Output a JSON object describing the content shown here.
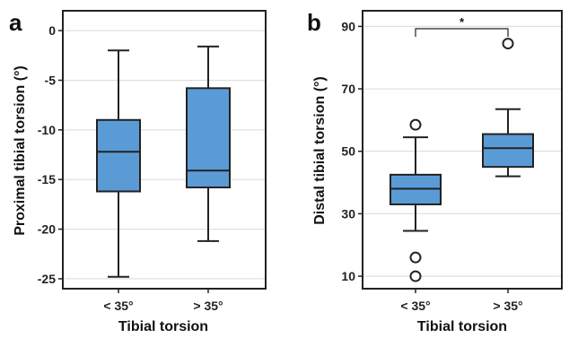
{
  "chart_data": [
    {
      "type": "box",
      "panel_label": "a",
      "xlabel": "Tibial torsion",
      "ylabel": "Proximal tibial torsion (°)",
      "categories": [
        "< 35°",
        "> 35°"
      ],
      "ylim": [
        -26,
        2
      ],
      "yticks": [
        0,
        -5,
        -10,
        -15,
        -20,
        -25
      ],
      "ytick_labels": [
        "0",
        "-5",
        "-10",
        "-15",
        "-20",
        "-25"
      ],
      "grid": true,
      "box_color": "#5b9bd5",
      "boxes": [
        {
          "category": "< 35°",
          "min": -24.8,
          "q1": -16.2,
          "median": -12.2,
          "q3": -9.0,
          "max": -2.0,
          "outliers": []
        },
        {
          "category": "> 35°",
          "min": -21.2,
          "q1": -15.8,
          "median": -14.1,
          "q3": -5.8,
          "max": -1.6,
          "outliers": []
        }
      ],
      "annotations": []
    },
    {
      "type": "box",
      "panel_label": "b",
      "xlabel": "Tibial torsion",
      "ylabel": "Distal tibial torsion (°)",
      "categories": [
        "< 35°",
        "> 35°"
      ],
      "ylim": [
        6,
        95
      ],
      "yticks": [
        10,
        30,
        50,
        70,
        90
      ],
      "ytick_labels": [
        "10",
        "30",
        "50",
        "70",
        "90"
      ],
      "grid": true,
      "box_color": "#5b9bd5",
      "boxes": [
        {
          "category": "< 35°",
          "min": 24.5,
          "q1": 33.0,
          "median": 38.0,
          "q3": 42.5,
          "max": 54.5,
          "outliers": [
            58.5,
            16.0,
            10.0
          ]
        },
        {
          "category": "> 35°",
          "min": 42.0,
          "q1": 45.0,
          "median": 51.0,
          "q3": 55.5,
          "max": 63.5,
          "outliers": [
            84.5
          ]
        }
      ],
      "annotations": [
        {
          "type": "significance",
          "label": "*",
          "between": [
            "< 35°",
            "> 35°"
          ]
        }
      ]
    }
  ]
}
